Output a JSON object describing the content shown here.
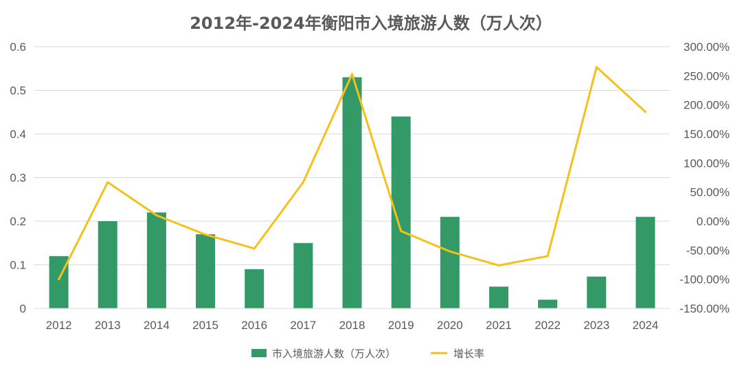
{
  "chart_data": {
    "type": "bar",
    "title": "2012年-2024年衡阳市入境旅游人数（万人次）",
    "categories": [
      "2012",
      "2013",
      "2014",
      "2015",
      "2016",
      "2017",
      "2018",
      "2019",
      "2020",
      "2021",
      "2022",
      "2023",
      "2024"
    ],
    "series": [
      {
        "name": "市入境旅游人数（万人次）",
        "type": "bar",
        "axis": "left",
        "color": "#339966",
        "values": [
          0.12,
          0.2,
          0.22,
          0.17,
          0.09,
          0.15,
          0.53,
          0.44,
          0.21,
          0.05,
          0.02,
          0.073,
          0.21
        ]
      },
      {
        "name": "增长率",
        "type": "line",
        "axis": "right",
        "color": "#f5c118",
        "values": [
          -100,
          67,
          10,
          -23,
          -47,
          67,
          253,
          -17,
          -52,
          -76,
          -60,
          265,
          188
        ]
      }
    ],
    "y_left": {
      "min": 0,
      "max": 0.6,
      "ticks": [
        "0",
        "0.1",
        "0.2",
        "0.3",
        "0.4",
        "0.5",
        "0.6"
      ]
    },
    "y_right": {
      "min": -150,
      "max": 300,
      "ticks": [
        "-150.00%",
        "-100.00%",
        "-50.00%",
        "0.00%",
        "50.00%",
        "100.00%",
        "150.00%",
        "200.00%",
        "250.00%",
        "300.00%"
      ]
    },
    "grid": true,
    "legend_position": "bottom"
  }
}
